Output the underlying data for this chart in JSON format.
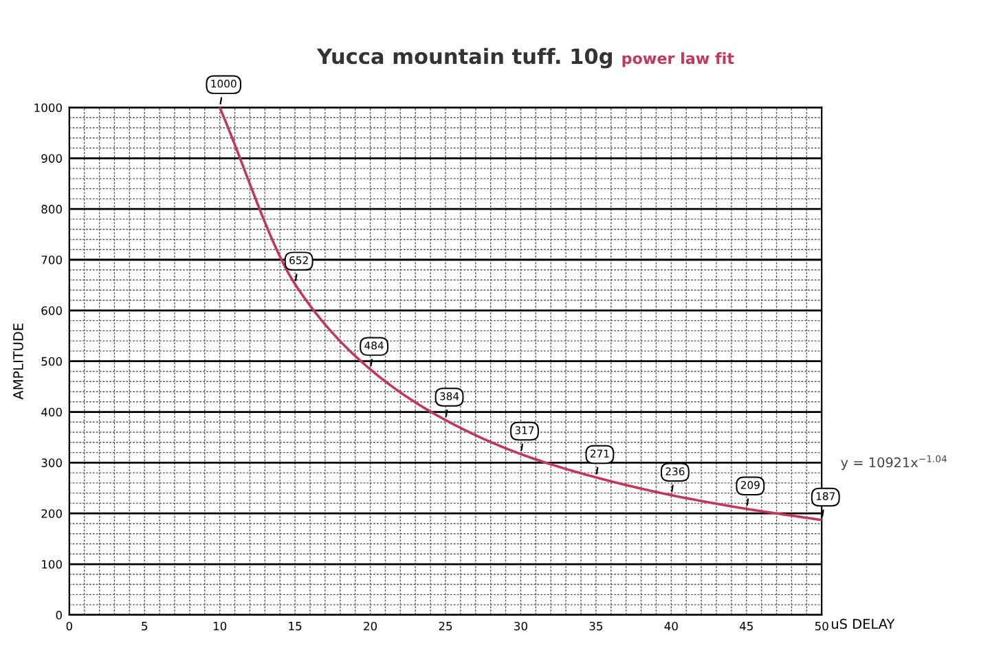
{
  "chart_data": {
    "type": "line",
    "title": "Yucca mountain tuff. 10g",
    "subtitle": "power law fit",
    "xlabel": "uS DELAY",
    "ylabel": "AMPLITUDE",
    "x": [
      10,
      15,
      20,
      25,
      30,
      35,
      40,
      45,
      50
    ],
    "series": [
      {
        "color": "#c2385a",
        "values": [
          1000,
          652,
          484,
          384,
          317,
          271,
          236,
          209,
          187
        ]
      }
    ],
    "data_labels": true,
    "marker": "none",
    "line_style": "solid",
    "xlim": [
      0,
      50
    ],
    "xticks": [
      0,
      5,
      10,
      15,
      20,
      25,
      30,
      35,
      40,
      45,
      50
    ],
    "ylim": [
      0,
      1000
    ],
    "yticks": [
      0,
      100,
      200,
      300,
      400,
      500,
      600,
      700,
      800,
      900,
      1000
    ],
    "grid": true,
    "legend": false,
    "annotations": [
      "y = 10921x$^{−1.04}$"
    ]
  }
}
